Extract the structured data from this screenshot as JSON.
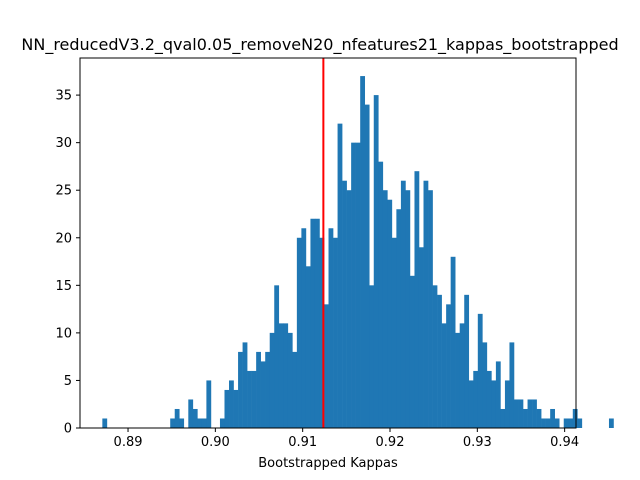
{
  "chart_data": {
    "type": "bar",
    "subtype": "histogram",
    "title": "NN_reducedV3.2_qval0.05_removeN20_nfeatures21_kappas_bootstrapped",
    "xlabel": "Bootstrapped Kappas",
    "ylabel": "",
    "xlim": [
      0.8845,
      0.9413
    ],
    "ylim": [
      0,
      38.9
    ],
    "x_ticks": [
      0.89,
      0.9,
      0.91,
      0.92,
      0.93,
      0.94
    ],
    "x_tick_labels": [
      "0.89",
      "0.90",
      "0.91",
      "0.92",
      "0.93",
      "0.94"
    ],
    "y_ticks": [
      0,
      5,
      10,
      15,
      20,
      25,
      30,
      35
    ],
    "y_tick_labels": [
      "0",
      "5",
      "10",
      "15",
      "20",
      "25",
      "30",
      "35"
    ],
    "grid": false,
    "legend": "none",
    "bin_start": 0.88706,
    "bin_width": 0.000518,
    "values": [
      1,
      0,
      0,
      0,
      0,
      0,
      0,
      0,
      0,
      0,
      0,
      0,
      0,
      0,
      0,
      1,
      2,
      1,
      0,
      3,
      2,
      1,
      1,
      5,
      0,
      0,
      1,
      4,
      5,
      4,
      8,
      9,
      6,
      6,
      8,
      7,
      8,
      10,
      15,
      11,
      11,
      10,
      8,
      20,
      21,
      17,
      22,
      22,
      20,
      13,
      21,
      20,
      32,
      26,
      25,
      30,
      30,
      37,
      34,
      15,
      35,
      28,
      25,
      24,
      20,
      23,
      26,
      25,
      16,
      27,
      19,
      26,
      25,
      15,
      14,
      11,
      13,
      18,
      10,
      11,
      14,
      5,
      6,
      12,
      9,
      6,
      5,
      7,
      2,
      5,
      9,
      3,
      3,
      2,
      3,
      3,
      2,
      1,
      1,
      2,
      1,
      0,
      1,
      1,
      2,
      1,
      0,
      0,
      0,
      0,
      0,
      0,
      1
    ],
    "vline_x": 0.91237,
    "bar_color": "#1f77b4",
    "vline_color": "#ff0000"
  }
}
